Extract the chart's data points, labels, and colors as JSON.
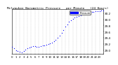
{
  "title": "Milwaukee Barometric Pressure   per Minute   (24 Hours)",
  "title_fontsize": 3.2,
  "background_color": "#ffffff",
  "plot_bg_color": "#ffffff",
  "dot_color": "#0000ff",
  "dot_size": 0.8,
  "grid_color": "#bbbbbb",
  "ylim": [
    28.88,
    30.32
  ],
  "xlim": [
    0,
    1440
  ],
  "ylabel_fontsize": 3.0,
  "xlabel_fontsize": 2.8,
  "yticks": [
    29.0,
    29.2,
    29.4,
    29.6,
    29.8,
    30.0,
    30.2
  ],
  "ytick_labels": [
    "29.0",
    "29.2",
    "29.4",
    "29.6",
    "29.8",
    "30.0",
    "30.2"
  ],
  "xtick_positions": [
    0,
    60,
    120,
    180,
    240,
    300,
    360,
    420,
    480,
    540,
    600,
    660,
    720,
    780,
    840,
    900,
    960,
    1020,
    1080,
    1140,
    1200,
    1260,
    1320,
    1380,
    1440
  ],
  "xtick_labels": [
    "0",
    "1",
    "2",
    "3",
    "4",
    "5",
    "6",
    "7",
    "8",
    "9",
    "10",
    "11",
    "12",
    "13",
    "14",
    "15",
    "16",
    "17",
    "18",
    "19",
    "20",
    "21",
    "22",
    "23",
    ""
  ],
  "vgrid_positions": [
    60,
    120,
    180,
    240,
    300,
    360,
    420,
    480,
    540,
    600,
    660,
    720,
    780,
    840,
    900,
    960,
    1020,
    1080,
    1140,
    1200,
    1260,
    1320,
    1380
  ],
  "legend_color": "#0000ff",
  "legend_label": "Pressure",
  "data_x": [
    0,
    30,
    60,
    90,
    120,
    150,
    180,
    210,
    240,
    270,
    300,
    330,
    360,
    390,
    420,
    450,
    480,
    510,
    540,
    570,
    600,
    630,
    660,
    690,
    720,
    750,
    780,
    810,
    840,
    870,
    900,
    930,
    960,
    990,
    1020,
    1050,
    1080,
    1110,
    1140,
    1170,
    1200,
    1230,
    1260,
    1290,
    1320,
    1350,
    1380,
    1410,
    1440
  ],
  "data_y": [
    29.1,
    29.05,
    29.0,
    28.97,
    28.94,
    28.92,
    28.96,
    29.01,
    29.07,
    29.09,
    29.11,
    29.13,
    29.12,
    29.1,
    29.11,
    29.13,
    29.14,
    29.15,
    29.17,
    29.19,
    29.21,
    29.24,
    29.29,
    29.34,
    29.4,
    29.46,
    29.56,
    29.66,
    29.76,
    29.83,
    29.91,
    29.96,
    30.01,
    30.06,
    30.09,
    30.11,
    30.13,
    30.14,
    30.16,
    30.17,
    30.19,
    30.21,
    30.23,
    30.24,
    30.25,
    30.26,
    30.27,
    30.28,
    30.28
  ]
}
